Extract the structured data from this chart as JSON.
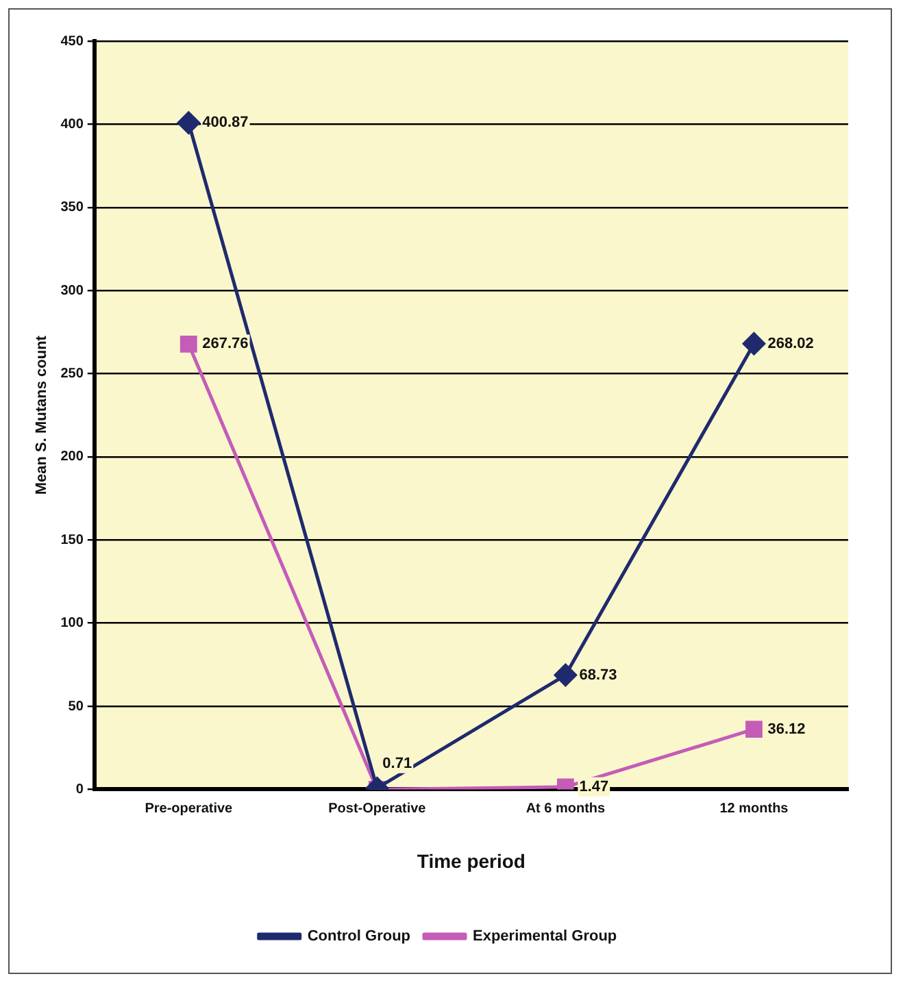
{
  "chart_data": {
    "type": "line",
    "xlabel": "Time period",
    "ylabel": "Mean S. Mutans count",
    "categories": [
      "Pre-operative",
      "Post-Operative",
      "At 6 months",
      "12 months"
    ],
    "series": [
      {
        "name": "Control Group",
        "color": "#1f2a6e",
        "marker": "diamond",
        "values": [
          400.87,
          0.71,
          68.73,
          268.02
        ],
        "value_labels": [
          "400.87",
          "0.71",
          "68.73",
          "268.02"
        ]
      },
      {
        "name": "Experimental Group",
        "color": "#c45cb8",
        "marker": "square",
        "values": [
          267.76,
          0,
          1.47,
          36.12
        ],
        "value_labels": [
          "267.76",
          null,
          "1.47",
          "36.12"
        ]
      }
    ],
    "ylim": [
      0,
      450
    ],
    "yticks": [
      0,
      50,
      100,
      150,
      200,
      250,
      300,
      350,
      400,
      450
    ],
    "grid": "y",
    "legend": "bottom",
    "line_style": "solid"
  }
}
